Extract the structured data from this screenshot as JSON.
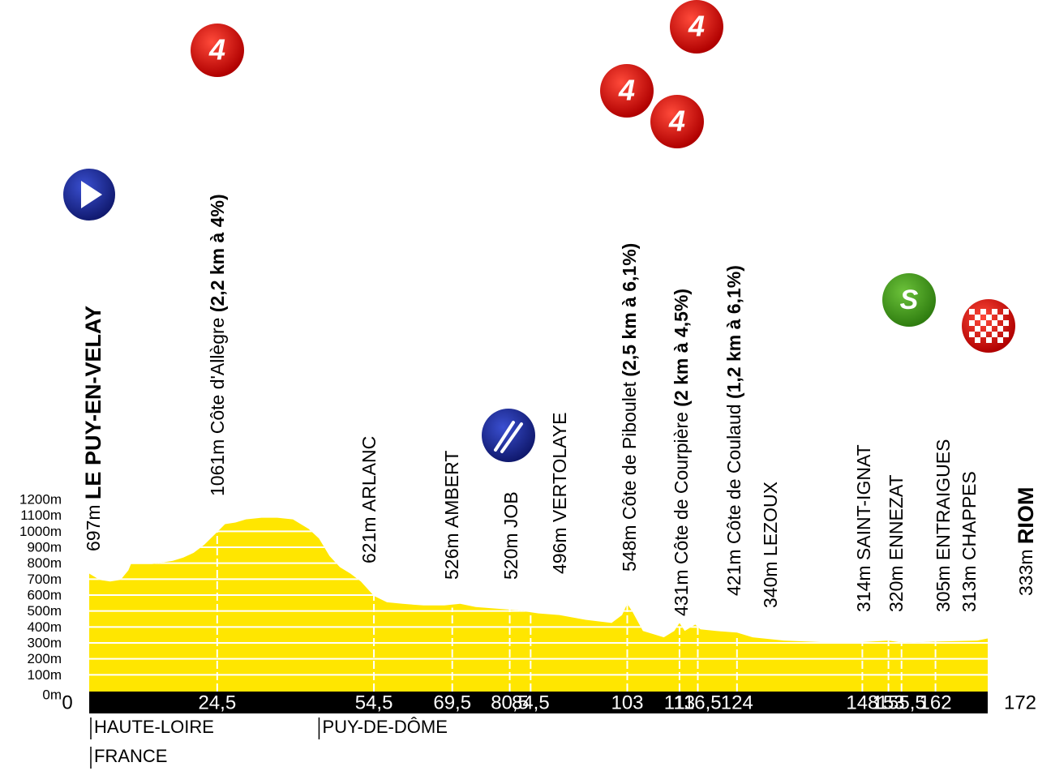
{
  "chart_data": {
    "type": "area",
    "color": "#ffe600",
    "x": [
      0,
      2,
      4,
      6,
      7.5,
      8,
      12,
      16,
      18,
      20,
      22,
      24.5,
      26,
      28,
      30,
      33,
      36,
      39,
      42,
      44,
      46,
      48,
      50,
      52,
      54.5,
      57,
      60,
      64,
      68,
      71,
      74,
      78,
      82,
      86,
      90,
      95,
      100,
      102,
      103,
      104,
      106,
      110,
      112,
      113,
      114,
      116,
      117,
      120,
      124,
      127,
      133,
      140,
      148,
      153,
      156,
      162,
      170,
      172
    ],
    "values": [
      740,
      700,
      690,
      700,
      760,
      800,
      800,
      820,
      840,
      870,
      920,
      1000,
      1050,
      1060,
      1080,
      1090,
      1090,
      1080,
      1020,
      960,
      850,
      780,
      740,
      690,
      600,
      560,
      550,
      540,
      540,
      550,
      530,
      520,
      510,
      490,
      480,
      450,
      430,
      480,
      550,
      500,
      380,
      340,
      380,
      430,
      380,
      420,
      390,
      380,
      370,
      340,
      320,
      310,
      310,
      320,
      305,
      313,
      320,
      333
    ],
    "xlim": [
      0,
      172
    ],
    "ylim": [
      0,
      1200
    ],
    "yticks": [
      {
        "value": 0,
        "label": "0m"
      },
      {
        "value": 100,
        "label": "100m"
      },
      {
        "value": 200,
        "label": "200m"
      },
      {
        "value": 300,
        "label": "300m"
      },
      {
        "value": 400,
        "label": "400m"
      },
      {
        "value": 500,
        "label": "500m"
      },
      {
        "value": 600,
        "label": "600m"
      },
      {
        "value": 700,
        "label": "700m"
      },
      {
        "value": 800,
        "label": "800m"
      },
      {
        "value": 900,
        "label": "900m"
      },
      {
        "value": 1000,
        "label": "1000m"
      },
      {
        "value": 1100,
        "label": "1100m"
      },
      {
        "value": 1200,
        "label": "1200m"
      }
    ],
    "waypoints": [
      {
        "km": {
          "value": 0,
          "label": "0"
        },
        "altitude": {
          "value": 697,
          "label": "697m"
        },
        "name": "LE PUY-EN-VELAY",
        "name_bold": true,
        "icon": "start"
      },
      {
        "km": {
          "value": 24.5,
          "label": "24,5"
        },
        "altitude": {
          "value": 1061,
          "label": "1061m"
        },
        "name": "Côte d'Allègre",
        "detail": "(2,2 km à 4%)",
        "icon": "climb",
        "category": "4"
      },
      {
        "km": {
          "value": 54.5,
          "label": "54,5"
        },
        "altitude": {
          "value": 621,
          "label": "621m"
        },
        "name": "ARLANC"
      },
      {
        "km": {
          "value": 69.5,
          "label": "69,5"
        },
        "altitude": {
          "value": 526,
          "label": "526m"
        },
        "name": "AMBERT"
      },
      {
        "km": {
          "value": 80.5,
          "label": "80,5"
        },
        "altitude": {
          "value": 520,
          "label": "520m"
        },
        "name": "JOB",
        "icon": "feed"
      },
      {
        "km": {
          "value": 84.5,
          "label": "84,5"
        },
        "altitude": {
          "value": 496,
          "label": "496m"
        },
        "name": "VERTOLAYE"
      },
      {
        "km": {
          "value": 103,
          "label": "103"
        },
        "altitude": {
          "value": 548,
          "label": "548m"
        },
        "name": "Côte de Piboulet",
        "detail": "(2,5 km à 6,1%)",
        "icon": "climb",
        "category": "4"
      },
      {
        "km": {
          "value": 113,
          "label": "113"
        },
        "altitude": {
          "value": 431,
          "label": "431m"
        },
        "name": "Côte de Courpière",
        "detail": "(2 km à 4,5%)",
        "icon": "climb",
        "category": "4"
      },
      {
        "km": {
          "value": 116.5,
          "label": "116,5"
        },
        "altitude": {
          "value": 421,
          "label": "421m"
        },
        "name": "Côte de Coulaud",
        "detail": "(1,2 km à 6,1%)",
        "icon": "climb",
        "category": "4"
      },
      {
        "km": {
          "value": 124,
          "label": "124"
        },
        "altitude": {
          "value": 340,
          "label": "340m"
        },
        "name": "LEZOUX"
      },
      {
        "km": {
          "value": 148,
          "label": "148"
        },
        "altitude": {
          "value": 314,
          "label": "314m"
        },
        "name": "SAINT-IGNAT"
      },
      {
        "km": {
          "value": 153,
          "label": "153"
        },
        "altitude": {
          "value": 320,
          "label": "320m"
        },
        "name": "ENNEZAT",
        "icon": "sprint",
        "category": "S"
      },
      {
        "km": {
          "value": 155.5,
          "label": "155,5"
        },
        "altitude": {
          "value": 305,
          "label": "305m"
        },
        "name": "ENTRAIGUES"
      },
      {
        "km": {
          "value": 162,
          "label": "162"
        },
        "altitude": {
          "value": 313,
          "label": "313m"
        },
        "name": "CHAPPES"
      },
      {
        "km": {
          "value": 172,
          "label": "172"
        },
        "altitude": {
          "value": 333,
          "label": "333m"
        },
        "name": "RIOM",
        "name_bold": true,
        "icon": "finish"
      }
    ],
    "regions": [
      {
        "km": 0,
        "labels": [
          "HAUTE-LOIRE",
          "FRANCE"
        ]
      },
      {
        "km": 44,
        "labels": [
          "PUY-DE-DÔME"
        ]
      }
    ]
  }
}
